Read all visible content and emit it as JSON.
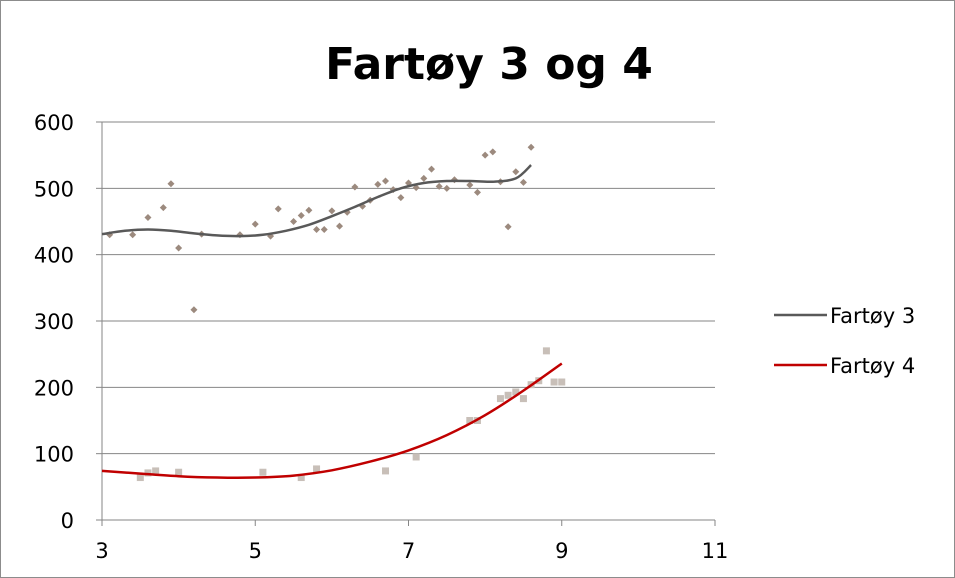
{
  "chart_data": {
    "type": "scatter",
    "title": "Fartøy 3 og 4",
    "xlabel": "",
    "ylabel": "",
    "xlim": [
      3,
      11
    ],
    "ylim": [
      0,
      600
    ],
    "x_ticks": [
      3,
      5,
      7,
      9,
      11
    ],
    "y_ticks": [
      0,
      100,
      200,
      300,
      400,
      500,
      600
    ],
    "x_tick_labels": [
      "3",
      "5",
      "7",
      "9",
      "11"
    ],
    "y_tick_labels": [
      "0",
      "100",
      "200",
      "300",
      "400",
      "500",
      "600"
    ],
    "grid": "horizontal",
    "legend_position": "right",
    "series": [
      {
        "name": "Fartøy 3",
        "marker": "diamond",
        "marker_color": "#9c8a7e",
        "trendline_color": "#595959",
        "points": [
          [
            3.1,
            430
          ],
          [
            3.4,
            430
          ],
          [
            3.6,
            456
          ],
          [
            3.8,
            471
          ],
          [
            3.9,
            507
          ],
          [
            4.0,
            410
          ],
          [
            4.2,
            317
          ],
          [
            4.3,
            431
          ],
          [
            4.8,
            430
          ],
          [
            5.0,
            446
          ],
          [
            5.2,
            428
          ],
          [
            5.3,
            469
          ],
          [
            5.5,
            450
          ],
          [
            5.6,
            459
          ],
          [
            5.7,
            467
          ],
          [
            5.8,
            438
          ],
          [
            5.9,
            438
          ],
          [
            6.0,
            466
          ],
          [
            6.1,
            443
          ],
          [
            6.2,
            464
          ],
          [
            6.3,
            502
          ],
          [
            6.4,
            473
          ],
          [
            6.5,
            482
          ],
          [
            6.6,
            506
          ],
          [
            6.7,
            511
          ],
          [
            6.8,
            498
          ],
          [
            6.9,
            486
          ],
          [
            7.0,
            508
          ],
          [
            7.1,
            501
          ],
          [
            7.2,
            515
          ],
          [
            7.3,
            529
          ],
          [
            7.4,
            503
          ],
          [
            7.5,
            500
          ],
          [
            7.6,
            513
          ],
          [
            7.8,
            505
          ],
          [
            7.9,
            494
          ],
          [
            8.0,
            550
          ],
          [
            8.1,
            555
          ],
          [
            8.2,
            510
          ],
          [
            8.3,
            442
          ],
          [
            8.4,
            525
          ],
          [
            8.5,
            509
          ],
          [
            8.6,
            562
          ]
        ],
        "trendline": [
          [
            3.0,
            431
          ],
          [
            3.3,
            436
          ],
          [
            3.6,
            438
          ],
          [
            3.9,
            436
          ],
          [
            4.2,
            432
          ],
          [
            4.5,
            429
          ],
          [
            4.8,
            428
          ],
          [
            5.1,
            430
          ],
          [
            5.4,
            436
          ],
          [
            5.7,
            445
          ],
          [
            6.0,
            458
          ],
          [
            6.3,
            472
          ],
          [
            6.6,
            487
          ],
          [
            6.9,
            500
          ],
          [
            7.2,
            508
          ],
          [
            7.5,
            511
          ],
          [
            7.8,
            511
          ],
          [
            8.1,
            510
          ],
          [
            8.4,
            515
          ],
          [
            8.6,
            535
          ]
        ]
      },
      {
        "name": "Fartøy 4",
        "marker": "square",
        "marker_color": "#c8bfb8",
        "trendline_color": "#c00000",
        "points": [
          [
            3.5,
            64
          ],
          [
            3.6,
            71
          ],
          [
            3.7,
            74
          ],
          [
            4.0,
            72
          ],
          [
            5.1,
            72
          ],
          [
            5.6,
            64
          ],
          [
            5.8,
            77
          ],
          [
            6.7,
            74
          ],
          [
            7.1,
            95
          ],
          [
            7.8,
            150
          ],
          [
            7.9,
            150
          ],
          [
            8.2,
            183
          ],
          [
            8.3,
            188
          ],
          [
            8.4,
            193
          ],
          [
            8.5,
            183
          ],
          [
            8.6,
            204
          ],
          [
            8.7,
            210
          ],
          [
            8.8,
            255
          ],
          [
            8.9,
            208
          ],
          [
            9.0,
            208
          ]
        ],
        "trendline": [
          [
            3.0,
            74
          ],
          [
            3.5,
            70
          ],
          [
            4.0,
            66
          ],
          [
            4.5,
            64
          ],
          [
            5.0,
            64
          ],
          [
            5.5,
            67
          ],
          [
            6.0,
            75
          ],
          [
            6.5,
            88
          ],
          [
            7.0,
            105
          ],
          [
            7.5,
            128
          ],
          [
            8.0,
            158
          ],
          [
            8.5,
            195
          ],
          [
            9.0,
            236
          ]
        ]
      }
    ]
  }
}
